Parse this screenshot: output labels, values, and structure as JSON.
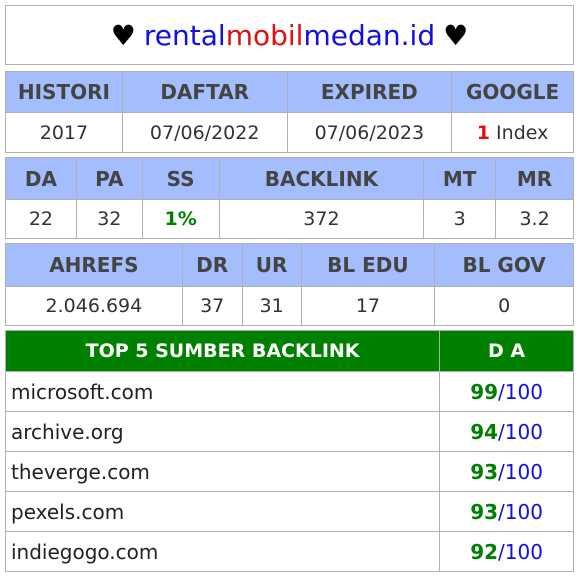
{
  "title": {
    "heart_left": "♥",
    "part1": "rental",
    "part2": "mobil",
    "part3": "medan.id",
    "heart_right": "♥"
  },
  "domain_info": {
    "headers": [
      "HISTORI",
      "DAFTAR",
      "EXPIRED",
      "GOOGLE"
    ],
    "histori": "2017",
    "daftar": "07/06/2022",
    "expired": "07/06/2023",
    "google_count": "1",
    "google_label": " Index"
  },
  "metrics": {
    "headers": [
      "DA",
      "PA",
      "SS",
      "BACKLINK",
      "MT",
      "MR"
    ],
    "da": "22",
    "pa": "32",
    "ss": "1%",
    "backlink": "372",
    "mt": "3",
    "mr": "3.2"
  },
  "ahrefs": {
    "headers": [
      "AHREFS",
      "DR",
      "UR",
      "BL EDU",
      "BL GOV"
    ],
    "ahrefs": "2.046.694",
    "dr": "37",
    "ur": "31",
    "bl_edu": "17",
    "bl_gov": "0"
  },
  "top_backlinks": {
    "header_source": "TOP 5 SUMBER BACKLINK",
    "header_da": "D A",
    "rows": [
      {
        "site": "microsoft.com",
        "da": "99",
        "max": "/100"
      },
      {
        "site": "archive.org",
        "da": "94",
        "max": "/100"
      },
      {
        "site": "theverge.com",
        "da": "93",
        "max": "/100"
      },
      {
        "site": "pexels.com",
        "da": "93",
        "max": "/100"
      },
      {
        "site": "indiegogo.com",
        "da": "92",
        "max": "/100"
      }
    ]
  },
  "colors": {
    "header_bg": "#a4bdfc",
    "top_header_bg": "#008000",
    "accent_blue": "#1010e0",
    "accent_red": "#e01010",
    "accent_green": "#008000"
  }
}
